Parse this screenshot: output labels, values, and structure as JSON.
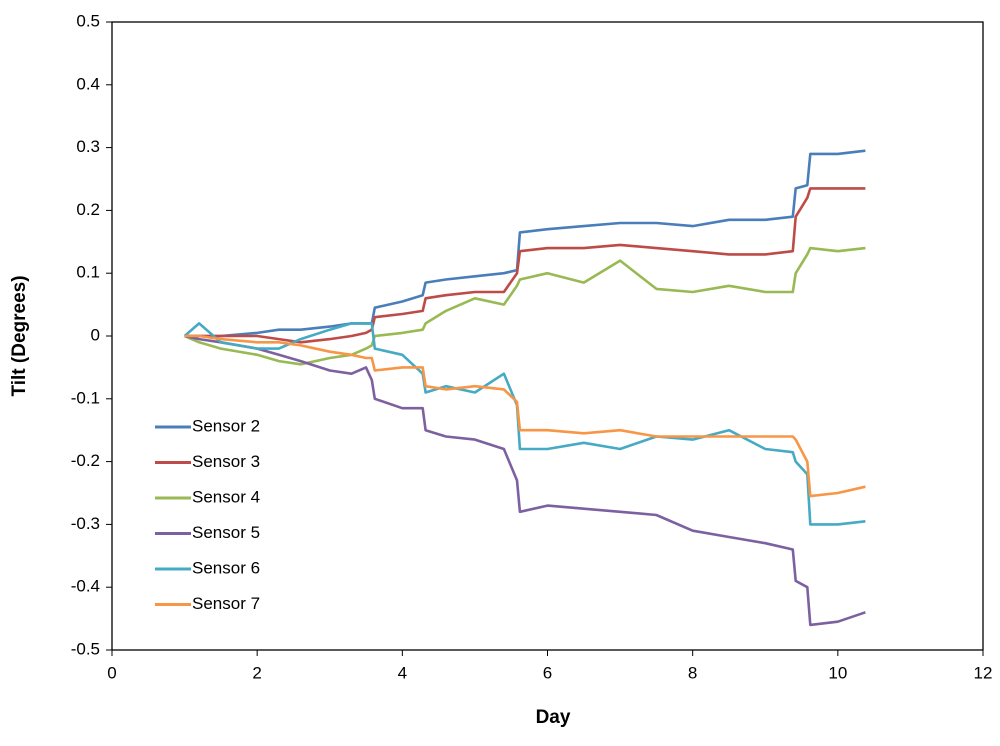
{
  "chart_data": {
    "type": "line",
    "xlabel": "Day",
    "ylabel": "Tilt (Degrees)",
    "x": [
      1,
      1.2,
      1.5,
      2,
      2.3,
      2.6,
      3,
      3.3,
      3.5,
      3.58,
      3.62,
      4,
      4.28,
      4.32,
      4.6,
      5,
      5.4,
      5.58,
      5.62,
      6,
      6.5,
      7,
      7.5,
      8,
      8.5,
      9,
      9.38,
      9.42,
      9.58,
      9.62,
      10,
      10.38
    ],
    "series": [
      {
        "name": "Sensor 2",
        "color": "#4a7ebb",
        "values": [
          0,
          0,
          0,
          0.005,
          0.01,
          0.01,
          0.015,
          0.02,
          0.02,
          0.02,
          0.045,
          0.055,
          0.065,
          0.085,
          0.09,
          0.095,
          0.1,
          0.105,
          0.165,
          0.17,
          0.175,
          0.18,
          0.18,
          0.175,
          0.185,
          0.185,
          0.19,
          0.235,
          0.24,
          0.29,
          0.29,
          0.295
        ]
      },
      {
        "name": "Sensor 3",
        "color": "#be4b48",
        "values": [
          0,
          0,
          0,
          0,
          -0.005,
          -0.01,
          -0.005,
          0,
          0.005,
          0.01,
          0.03,
          0.035,
          0.04,
          0.06,
          0.065,
          0.07,
          0.07,
          0.1,
          0.135,
          0.14,
          0.14,
          0.145,
          0.14,
          0.135,
          0.13,
          0.13,
          0.135,
          0.19,
          0.22,
          0.235,
          0.235,
          0.235
        ]
      },
      {
        "name": "Sensor 4",
        "color": "#98b954",
        "values": [
          0,
          -0.01,
          -0.02,
          -0.03,
          -0.04,
          -0.045,
          -0.035,
          -0.03,
          -0.02,
          -0.015,
          0,
          0.005,
          0.01,
          0.02,
          0.04,
          0.06,
          0.05,
          0.08,
          0.09,
          0.1,
          0.085,
          0.12,
          0.075,
          0.07,
          0.08,
          0.07,
          0.07,
          0.1,
          0.13,
          0.14,
          0.135,
          0.14
        ]
      },
      {
        "name": "Sensor 5",
        "color": "#7d60a0",
        "values": [
          0,
          -0.005,
          -0.01,
          -0.02,
          -0.03,
          -0.04,
          -0.055,
          -0.06,
          -0.05,
          -0.07,
          -0.1,
          -0.115,
          -0.115,
          -0.15,
          -0.16,
          -0.165,
          -0.18,
          -0.23,
          -0.28,
          -0.27,
          -0.275,
          -0.28,
          -0.285,
          -0.31,
          -0.32,
          -0.33,
          -0.34,
          -0.39,
          -0.4,
          -0.46,
          -0.455,
          -0.44
        ]
      },
      {
        "name": "Sensor 6",
        "color": "#46aac5",
        "values": [
          0,
          0.02,
          -0.01,
          -0.02,
          -0.02,
          -0.005,
          0.01,
          0.02,
          0.02,
          0.02,
          -0.02,
          -0.03,
          -0.06,
          -0.09,
          -0.08,
          -0.09,
          -0.06,
          -0.11,
          -0.18,
          -0.18,
          -0.17,
          -0.18,
          -0.16,
          -0.165,
          -0.15,
          -0.18,
          -0.185,
          -0.2,
          -0.22,
          -0.3,
          -0.3,
          -0.295
        ]
      },
      {
        "name": "Sensor 7",
        "color": "#f79646",
        "values": [
          0,
          0,
          -0.005,
          -0.01,
          -0.01,
          -0.015,
          -0.025,
          -0.03,
          -0.035,
          -0.035,
          -0.055,
          -0.05,
          -0.05,
          -0.08,
          -0.085,
          -0.08,
          -0.085,
          -0.105,
          -0.15,
          -0.15,
          -0.155,
          -0.15,
          -0.16,
          -0.16,
          -0.16,
          -0.16,
          -0.16,
          -0.165,
          -0.2,
          -0.255,
          -0.25,
          -0.24
        ]
      }
    ],
    "xlim": [
      0,
      12
    ],
    "xticks": [
      0,
      2,
      4,
      6,
      8,
      10,
      12
    ],
    "ylim": [
      -0.5,
      0.5
    ],
    "yticks": [
      -0.5,
      -0.4,
      -0.3,
      -0.2,
      -0.1,
      0,
      0.1,
      0.2,
      0.3,
      0.4,
      0.5
    ],
    "grid": false,
    "legend": "left"
  }
}
